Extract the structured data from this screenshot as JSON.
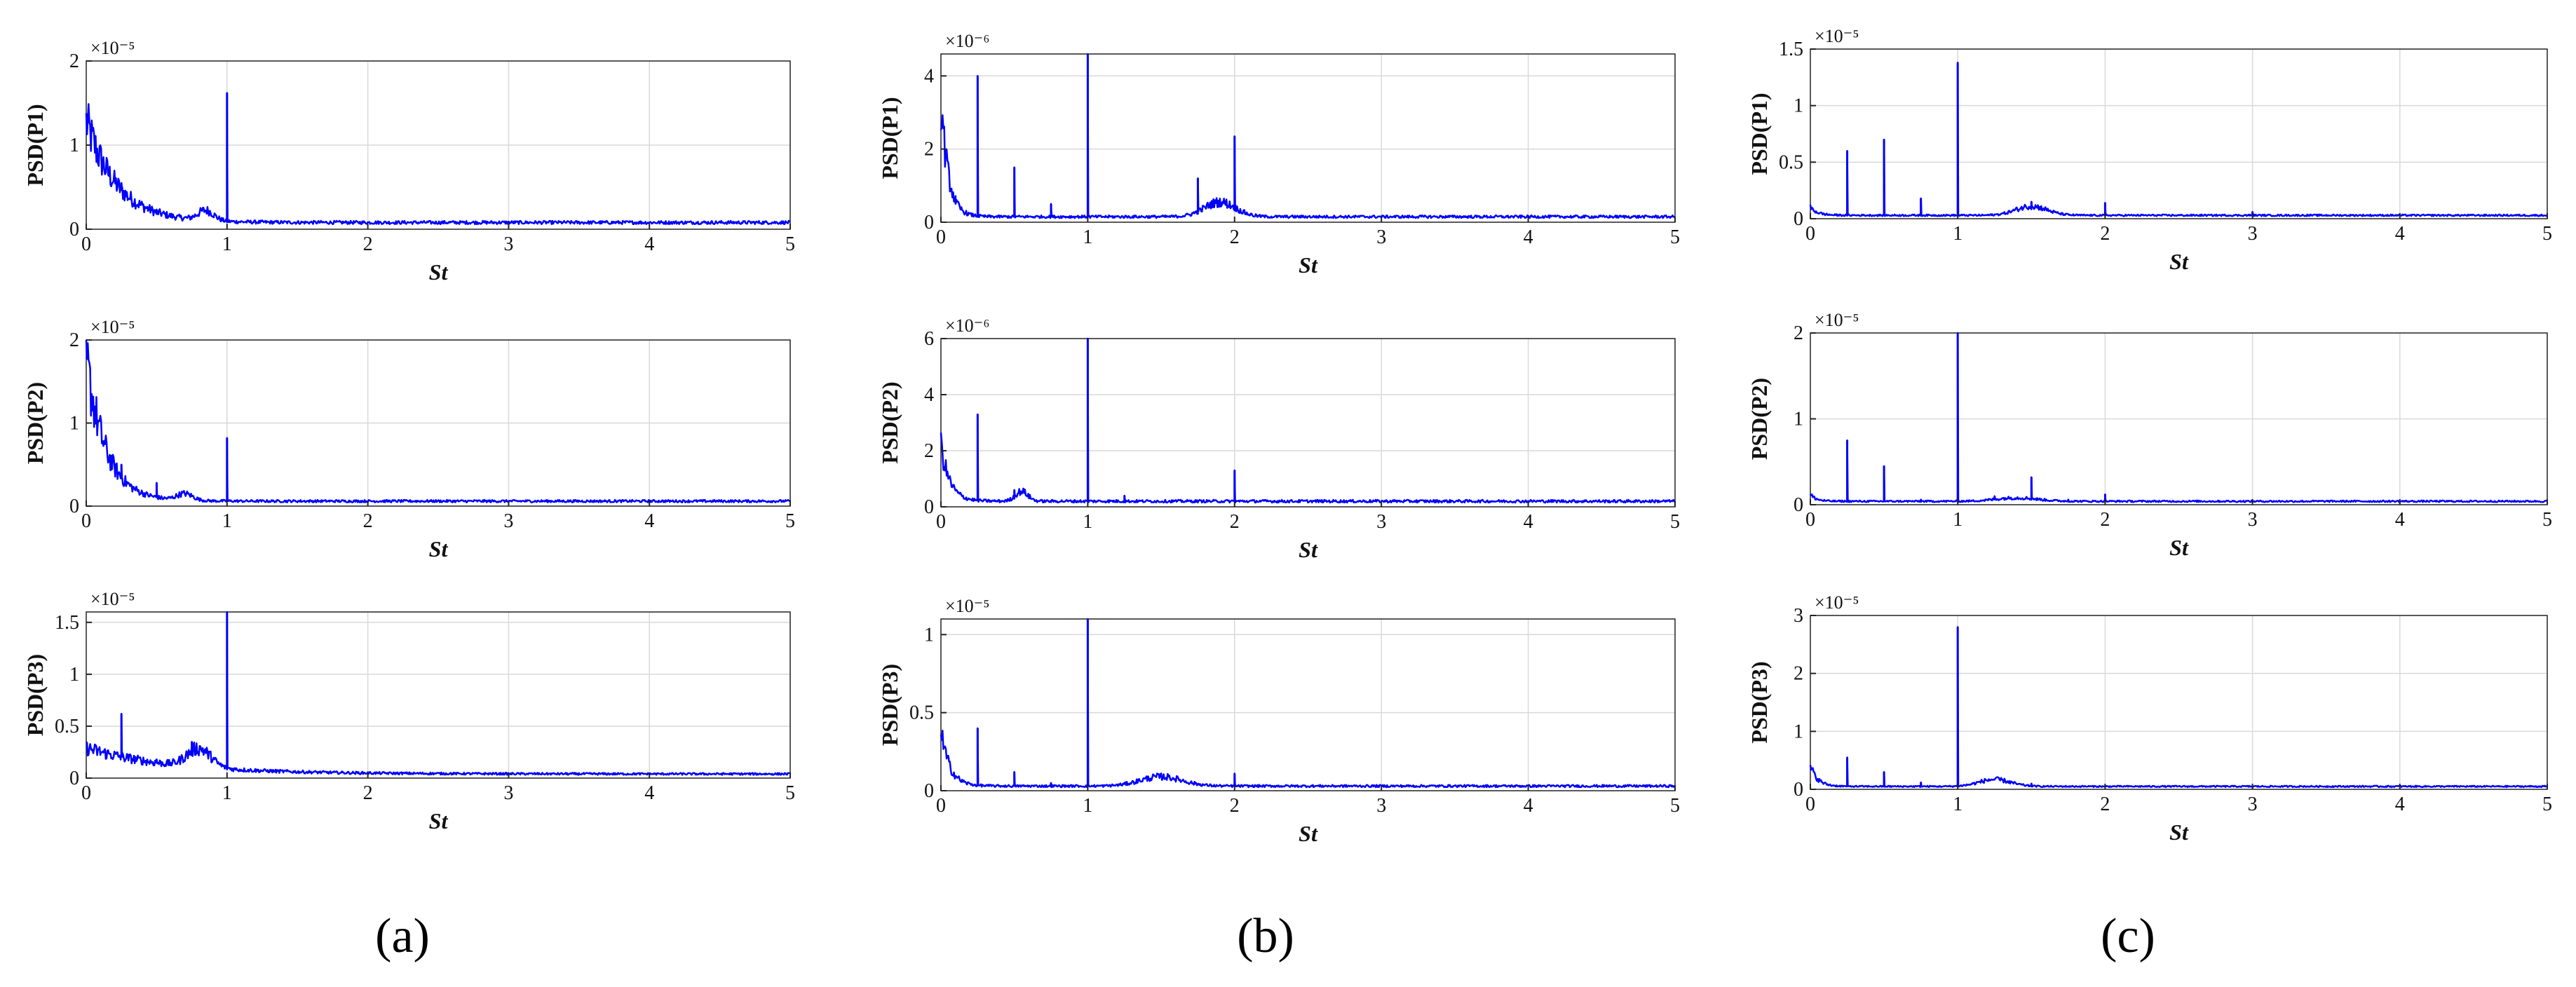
{
  "style": {
    "series_color": "#0000ff",
    "grid_color": "#d9d9d9"
  },
  "captions": [
    "(a)",
    "(b)",
    "(c)"
  ],
  "chart_data": [
    {
      "type": "line",
      "panel": "a",
      "ylabel": "PSD(P1)",
      "xlabel": "St",
      "exponent_label": "×10⁻⁵",
      "xlim": [
        0,
        5
      ],
      "ylim": [
        0,
        2
      ],
      "xticks": [
        "0",
        "1",
        "2",
        "3",
        "4",
        "5"
      ],
      "yticks": [
        "0",
        "1",
        "2"
      ],
      "yticks_values": [
        0,
        1,
        2
      ],
      "grid": true,
      "series": [
        {
          "baseline": 0.08,
          "low_hump": [
            0.0,
            1.2,
            0.22
          ],
          "humps": [
            [
              0.85,
              0.12,
              0.08
            ]
          ],
          "peaks": [
            [
              0.25,
              0.55
            ],
            [
              0.5,
              0.18
            ],
            [
              0.75,
              0.15
            ],
            [
              1.0,
              1.62
            ]
          ]
        }
      ]
    },
    {
      "type": "line",
      "panel": "a",
      "ylabel": "PSD(P2)",
      "xlabel": "St",
      "exponent_label": "×10⁻⁵",
      "xlim": [
        0,
        5
      ],
      "ylim": [
        0,
        2
      ],
      "xticks": [
        "0",
        "1",
        "2",
        "3",
        "4",
        "5"
      ],
      "yticks": [
        "0",
        "1",
        "2"
      ],
      "yticks_values": [
        0,
        1,
        2
      ],
      "grid": true,
      "series": [
        {
          "baseline": 0.06,
          "low_hump": [
            0.0,
            1.7,
            0.14
          ],
          "humps": [
            [
              0.7,
              0.08,
              0.08
            ]
          ],
          "peaks": [
            [
              0.25,
              0.5
            ],
            [
              0.5,
              0.28
            ],
            [
              1.0,
              0.82
            ]
          ]
        }
      ]
    },
    {
      "type": "line",
      "panel": "a",
      "ylabel": "PSD(P3)",
      "xlabel": "St",
      "exponent_label": "×10⁻⁵",
      "xlim": [
        0,
        5
      ],
      "ylim": [
        0,
        1.6
      ],
      "xticks": [
        "0",
        "1",
        "2",
        "3",
        "4",
        "5"
      ],
      "yticks": [
        "0",
        "0.5",
        "1",
        "1.5"
      ],
      "yticks_values": [
        0,
        0.5,
        1,
        1.5
      ],
      "grid": true,
      "series": [
        {
          "baseline": 0.04,
          "low_hump": [
            0.0,
            0.25,
            0.6
          ],
          "humps": [
            [
              0.8,
              0.18,
              0.12
            ]
          ],
          "peaks": [
            [
              0.25,
              0.62
            ],
            [
              0.5,
              0.18
            ],
            [
              0.75,
              0.35
            ],
            [
              1.0,
              1.6
            ]
          ]
        }
      ]
    },
    {
      "type": "line",
      "panel": "b",
      "ylabel": "PSD(P1)",
      "xlabel": "St",
      "exponent_label": "×10⁻⁶",
      "xlim": [
        0,
        5
      ],
      "ylim": [
        0,
        4.6
      ],
      "xticks": [
        "0",
        "1",
        "2",
        "3",
        "4",
        "5"
      ],
      "yticks": [
        "0",
        "2",
        "4"
      ],
      "yticks_values": [
        0,
        2,
        4
      ],
      "grid": true,
      "series": [
        {
          "baseline": 0.15,
          "low_hump": [
            0.0,
            3.2,
            0.05
          ],
          "humps": [
            [
              1.9,
              0.4,
              0.15
            ]
          ],
          "peaks": [
            [
              0.1,
              0.5
            ],
            [
              0.25,
              4.0
            ],
            [
              0.5,
              1.5
            ],
            [
              0.75,
              0.5
            ],
            [
              1.0,
              4.6
            ],
            [
              1.75,
              1.2
            ],
            [
              2.0,
              2.35
            ],
            [
              3.0,
              0.15
            ]
          ]
        }
      ]
    },
    {
      "type": "line",
      "panel": "b",
      "ylabel": "PSD(P2)",
      "xlabel": "St",
      "exponent_label": "×10⁻⁶",
      "xlim": [
        0,
        5
      ],
      "ylim": [
        0,
        6
      ],
      "xticks": [
        "0",
        "1",
        "2",
        "3",
        "4",
        "5"
      ],
      "yticks": [
        "0",
        "2",
        "4",
        "6"
      ],
      "yticks_values": [
        0,
        2,
        4,
        6
      ],
      "grid": true,
      "series": [
        {
          "baseline": 0.2,
          "low_hump": [
            0.0,
            2.0,
            0.06
          ],
          "humps": [
            [
              0.55,
              0.35,
              0.06
            ]
          ],
          "peaks": [
            [
              0.25,
              3.3
            ],
            [
              0.5,
              0.6
            ],
            [
              1.0,
              6.0
            ],
            [
              1.25,
              0.4
            ],
            [
              1.75,
              0.2
            ],
            [
              2.0,
              1.3
            ]
          ]
        }
      ]
    },
    {
      "type": "line",
      "panel": "b",
      "ylabel": "PSD(P3)",
      "xlabel": "St",
      "exponent_label": "×10⁻⁵",
      "xlim": [
        0,
        5
      ],
      "ylim": [
        0,
        1.1
      ],
      "xticks": [
        "0",
        "1",
        "2",
        "3",
        "4",
        "5"
      ],
      "yticks": [
        "0",
        "0.5",
        "1"
      ],
      "yticks_values": [
        0,
        0.5,
        1
      ],
      "grid": true,
      "series": [
        {
          "baseline": 0.03,
          "low_hump": [
            0.0,
            0.35,
            0.06
          ],
          "humps": [
            [
              1.5,
              0.06,
              0.2
            ]
          ],
          "peaks": [
            [
              0.25,
              0.4
            ],
            [
              0.5,
              0.12
            ],
            [
              0.75,
              0.05
            ],
            [
              1.0,
              1.1
            ],
            [
              1.25,
              0.05
            ],
            [
              1.75,
              0.04
            ],
            [
              2.0,
              0.11
            ]
          ]
        }
      ]
    },
    {
      "type": "line",
      "panel": "c",
      "ylabel": "PSD(P1)",
      "xlabel": "St",
      "exponent_label": "×10⁻⁵",
      "xlim": [
        0,
        5
      ],
      "ylim": [
        0,
        1.5
      ],
      "xticks": [
        "0",
        "1",
        "2",
        "3",
        "4",
        "5"
      ],
      "yticks": [
        "0",
        "0.5",
        "1",
        "1.5"
      ],
      "yticks_values": [
        0,
        0.5,
        1,
        1.5
      ],
      "grid": true,
      "series": [
        {
          "baseline": 0.03,
          "low_hump": [
            0.0,
            0.07,
            0.05
          ],
          "humps": [
            [
              1.5,
              0.08,
              0.15
            ]
          ],
          "peaks": [
            [
              0.25,
              0.6
            ],
            [
              0.5,
              0.7
            ],
            [
              0.75,
              0.18
            ],
            [
              1.0,
              1.38
            ],
            [
              1.5,
              0.15
            ],
            [
              2.0,
              0.14
            ],
            [
              3.0,
              0.06
            ]
          ]
        }
      ]
    },
    {
      "type": "line",
      "panel": "c",
      "ylabel": "PSD(P2)",
      "xlabel": "St",
      "exponent_label": "×10⁻⁵",
      "xlim": [
        0,
        5
      ],
      "ylim": [
        0,
        2
      ],
      "xticks": [
        "0",
        "1",
        "2",
        "3",
        "4",
        "5"
      ],
      "yticks": [
        "0",
        "1",
        "2"
      ],
      "yticks_values": [
        0,
        1,
        2
      ],
      "grid": true,
      "series": [
        {
          "baseline": 0.04,
          "low_hump": [
            0.0,
            0.08,
            0.04
          ],
          "humps": [
            [
              1.4,
              0.04,
              0.2
            ]
          ],
          "peaks": [
            [
              0.25,
              0.75
            ],
            [
              0.5,
              0.45
            ],
            [
              0.75,
              0.06
            ],
            [
              1.0,
              2.0
            ],
            [
              1.25,
              0.1
            ],
            [
              1.5,
              0.32
            ],
            [
              1.75,
              0.06
            ],
            [
              2.0,
              0.12
            ],
            [
              3.0,
              0.03
            ]
          ]
        }
      ]
    },
    {
      "type": "line",
      "panel": "c",
      "ylabel": "PSD(P3)",
      "xlabel": "St",
      "exponent_label": "×10⁻⁵",
      "xlim": [
        0,
        5
      ],
      "ylim": [
        0,
        3
      ],
      "xticks": [
        "0",
        "1",
        "2",
        "3",
        "4",
        "5"
      ],
      "yticks": [
        "0",
        "1",
        "2",
        "3"
      ],
      "yticks_values": [
        0,
        1,
        2,
        3
      ],
      "grid": true,
      "series": [
        {
          "baseline": 0.05,
          "low_hump": [
            0.0,
            0.35,
            0.05
          ],
          "humps": [
            [
              1.25,
              0.12,
              0.15
            ]
          ],
          "peaks": [
            [
              0.25,
              0.55
            ],
            [
              0.5,
              0.3
            ],
            [
              0.75,
              0.12
            ],
            [
              1.0,
              2.8
            ],
            [
              1.5,
              0.1
            ],
            [
              2.0,
              0.06
            ]
          ]
        }
      ]
    }
  ]
}
